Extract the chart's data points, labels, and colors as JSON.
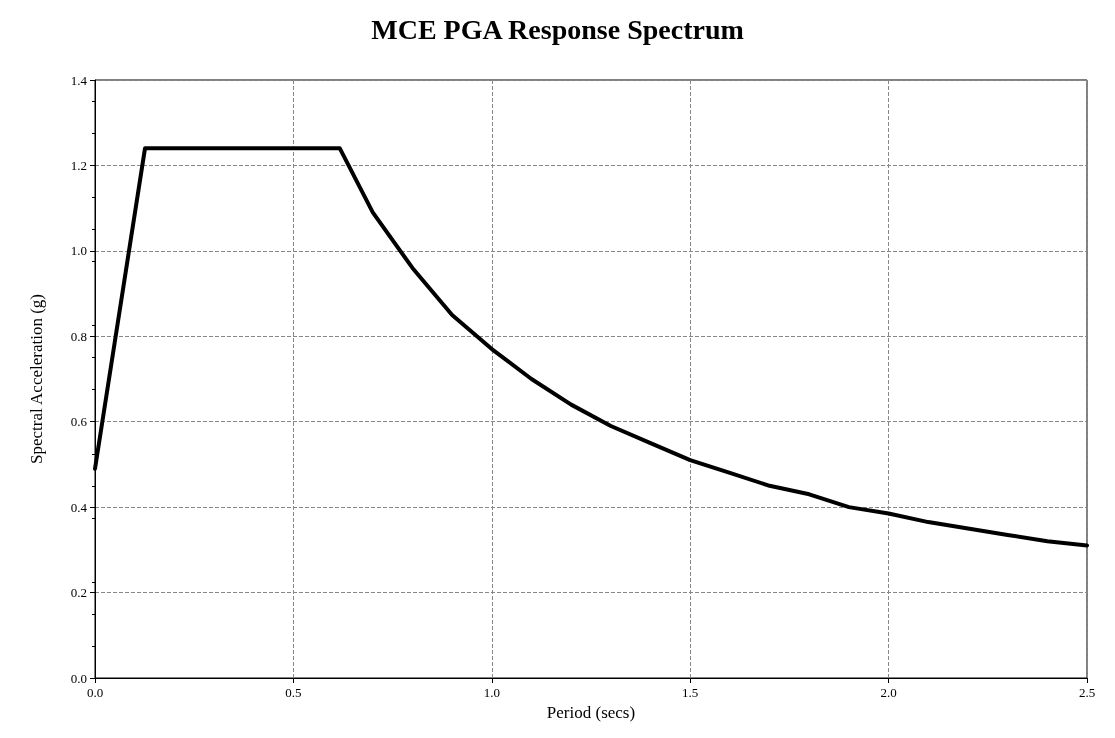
{
  "chart_data": {
    "type": "line",
    "title": "MCE PGA Response Spectrum",
    "xlabel": "Period (secs)",
    "ylabel": "Spectral Acceleration (g)",
    "x": [
      0,
      0.126,
      0.617,
      0.7,
      0.8,
      0.9,
      1.0,
      1.1,
      1.2,
      1.3,
      1.4,
      1.5,
      1.6,
      1.7,
      1.8,
      1.9,
      2.0,
      2.1,
      2.2,
      2.3,
      2.4,
      2.5
    ],
    "series": [
      {
        "color": "#000000",
        "values": [
          0.49,
          1.24,
          1.24,
          1.09,
          0.96,
          0.85,
          0.77,
          0.7,
          0.64,
          0.59,
          0.55,
          0.51,
          0.48,
          0.45,
          0.43,
          0.4,
          0.385,
          0.365,
          0.35,
          0.335,
          0.32,
          0.31
        ]
      }
    ],
    "xlim": [
      0,
      2.5
    ],
    "xticks": [
      {
        "value": 0,
        "label": "0.0"
      },
      0.5,
      {
        "value": 1,
        "label": "1.0"
      },
      1.5,
      {
        "value": 2,
        "label": "2.0"
      },
      2.5
    ],
    "ylim": [
      0,
      1.4
    ],
    "yticks": [
      {
        "value": 0,
        "label": "0.0"
      },
      0.2,
      0.4,
      0.6,
      0.8,
      {
        "value": 1,
        "label": "1.0"
      },
      1.2,
      1.4
    ],
    "grid": true,
    "marker": "none",
    "line_style": "solid"
  }
}
